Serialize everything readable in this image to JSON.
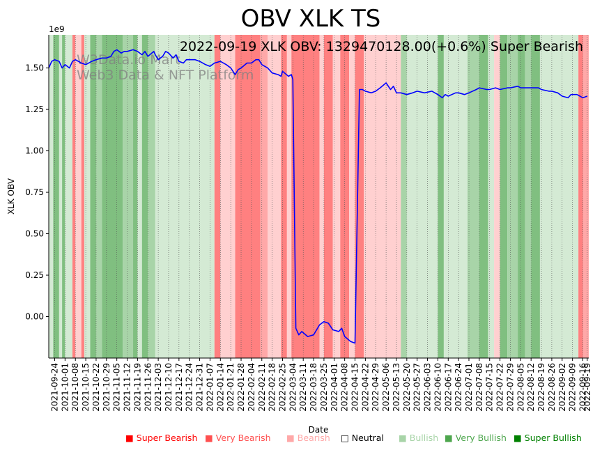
{
  "chart_data": {
    "type": "line",
    "title": "OBV XLK TS",
    "annotation": "2022-09-19 XLK OBV: 1329470128.00(+0.6%) Super Bearish",
    "watermark": [
      "W3Data.io Mart",
      "Web3 Data & NFT Platform"
    ],
    "xlabel": "Date",
    "ylabel": "XLK OBV",
    "y_offset_label": "1e9",
    "ylim": [
      -0.25,
      1.7
    ],
    "yticks": [
      0.0,
      0.25,
      0.5,
      0.75,
      1.0,
      1.25,
      1.5
    ],
    "ytick_labels": [
      "0.00",
      "0.25",
      "0.50",
      "0.75",
      "1.00",
      "1.25",
      "1.50"
    ],
    "x_range": [
      "2021-09-20",
      "2022-09-20"
    ],
    "xtick_labels": [
      "2021-09-24",
      "2021-10-01",
      "2021-10-08",
      "2021-10-15",
      "2021-10-22",
      "2021-10-29",
      "2021-11-05",
      "2021-11-12",
      "2021-11-19",
      "2021-11-26",
      "2021-12-03",
      "2021-12-10",
      "2021-12-17",
      "2021-12-24",
      "2021-12-31",
      "2022-01-07",
      "2022-01-14",
      "2022-01-21",
      "2022-01-28",
      "2022-02-04",
      "2022-02-11",
      "2022-02-18",
      "2022-02-25",
      "2022-03-04",
      "2022-03-11",
      "2022-03-18",
      "2022-03-25",
      "2022-04-01",
      "2022-04-08",
      "2022-04-15",
      "2022-04-22",
      "2022-04-29",
      "2022-05-06",
      "2022-05-13",
      "2022-05-20",
      "2022-05-27",
      "2022-06-03",
      "2022-06-10",
      "2022-06-17",
      "2022-06-24",
      "2022-07-01",
      "2022-07-08",
      "2022-07-15",
      "2022-07-22",
      "2022-07-29",
      "2022-08-05",
      "2022-08-12",
      "2022-08-19",
      "2022-08-26",
      "2022-09-02",
      "2022-09-09",
      "2022-09-16",
      "2022-09-19"
    ],
    "series": [
      {
        "name": "XLK OBV",
        "color": "#0000ff",
        "points": [
          [
            "2021-09-20",
            1.5
          ],
          [
            "2021-09-22",
            1.54
          ],
          [
            "2021-09-24",
            1.55
          ],
          [
            "2021-09-27",
            1.54
          ],
          [
            "2021-09-29",
            1.5
          ],
          [
            "2021-10-01",
            1.52
          ],
          [
            "2021-10-04",
            1.5
          ],
          [
            "2021-10-06",
            1.54
          ],
          [
            "2021-10-08",
            1.55
          ],
          [
            "2021-10-12",
            1.53
          ],
          [
            "2021-10-15",
            1.52
          ],
          [
            "2021-10-19",
            1.54
          ],
          [
            "2021-10-22",
            1.55
          ],
          [
            "2021-10-26",
            1.56
          ],
          [
            "2021-10-29",
            1.56
          ],
          [
            "2021-11-01",
            1.57
          ],
          [
            "2021-11-03",
            1.6
          ],
          [
            "2021-11-05",
            1.61
          ],
          [
            "2021-11-08",
            1.59
          ],
          [
            "2021-11-10",
            1.6
          ],
          [
            "2021-11-12",
            1.6
          ],
          [
            "2021-11-16",
            1.61
          ],
          [
            "2021-11-19",
            1.6
          ],
          [
            "2021-11-22",
            1.58
          ],
          [
            "2021-11-24",
            1.6
          ],
          [
            "2021-11-26",
            1.57
          ],
          [
            "2021-11-30",
            1.6
          ],
          [
            "2021-12-01",
            1.58
          ],
          [
            "2021-12-03",
            1.55
          ],
          [
            "2021-12-06",
            1.57
          ],
          [
            "2021-12-08",
            1.6
          ],
          [
            "2021-12-10",
            1.59
          ],
          [
            "2021-12-13",
            1.56
          ],
          [
            "2021-12-15",
            1.58
          ],
          [
            "2021-12-17",
            1.54
          ],
          [
            "2021-12-20",
            1.53
          ],
          [
            "2021-12-22",
            1.55
          ],
          [
            "2021-12-24",
            1.55
          ],
          [
            "2021-12-28",
            1.55
          ],
          [
            "2021-12-31",
            1.54
          ],
          [
            "2022-01-04",
            1.52
          ],
          [
            "2022-01-07",
            1.51
          ],
          [
            "2022-01-10",
            1.53
          ],
          [
            "2022-01-14",
            1.54
          ],
          [
            "2022-01-18",
            1.52
          ],
          [
            "2022-01-21",
            1.5
          ],
          [
            "2022-01-24",
            1.46
          ],
          [
            "2022-01-26",
            1.49
          ],
          [
            "2022-01-28",
            1.5
          ],
          [
            "2022-02-01",
            1.53
          ],
          [
            "2022-02-04",
            1.53
          ],
          [
            "2022-02-07",
            1.55
          ],
          [
            "2022-02-09",
            1.55
          ],
          [
            "2022-02-11",
            1.52
          ],
          [
            "2022-02-15",
            1.5
          ],
          [
            "2022-02-18",
            1.47
          ],
          [
            "2022-02-22",
            1.46
          ],
          [
            "2022-02-24",
            1.45
          ],
          [
            "2022-02-25",
            1.48
          ],
          [
            "2022-03-01",
            1.45
          ],
          [
            "2022-03-03",
            1.46
          ],
          [
            "2022-03-04",
            1.43
          ],
          [
            "2022-03-06",
            -0.07
          ],
          [
            "2022-03-08",
            -0.11
          ],
          [
            "2022-03-10",
            -0.09
          ],
          [
            "2022-03-14",
            -0.12
          ],
          [
            "2022-03-18",
            -0.11
          ],
          [
            "2022-03-22",
            -0.05
          ],
          [
            "2022-03-25",
            -0.03
          ],
          [
            "2022-03-28",
            -0.04
          ],
          [
            "2022-03-31",
            -0.08
          ],
          [
            "2022-04-04",
            -0.09
          ],
          [
            "2022-04-06",
            -0.07
          ],
          [
            "2022-04-08",
            -0.12
          ],
          [
            "2022-04-12",
            -0.15
          ],
          [
            "2022-04-15",
            -0.16
          ],
          [
            "2022-04-18",
            1.37
          ],
          [
            "2022-04-20",
            1.37
          ],
          [
            "2022-04-22",
            1.36
          ],
          [
            "2022-04-26",
            1.35
          ],
          [
            "2022-04-29",
            1.36
          ],
          [
            "2022-05-02",
            1.38
          ],
          [
            "2022-05-06",
            1.41
          ],
          [
            "2022-05-09",
            1.37
          ],
          [
            "2022-05-11",
            1.39
          ],
          [
            "2022-05-13",
            1.35
          ],
          [
            "2022-05-16",
            1.35
          ],
          [
            "2022-05-20",
            1.34
          ],
          [
            "2022-05-24",
            1.35
          ],
          [
            "2022-05-27",
            1.36
          ],
          [
            "2022-06-01",
            1.35
          ],
          [
            "2022-06-06",
            1.36
          ],
          [
            "2022-06-10",
            1.34
          ],
          [
            "2022-06-13",
            1.32
          ],
          [
            "2022-06-15",
            1.34
          ],
          [
            "2022-06-17",
            1.33
          ],
          [
            "2022-06-22",
            1.35
          ],
          [
            "2022-06-24",
            1.35
          ],
          [
            "2022-06-28",
            1.34
          ],
          [
            "2022-07-01",
            1.35
          ],
          [
            "2022-07-06",
            1.37
          ],
          [
            "2022-07-08",
            1.38
          ],
          [
            "2022-07-13",
            1.37
          ],
          [
            "2022-07-15",
            1.37
          ],
          [
            "2022-07-19",
            1.38
          ],
          [
            "2022-07-22",
            1.37
          ],
          [
            "2022-07-27",
            1.38
          ],
          [
            "2022-07-29",
            1.38
          ],
          [
            "2022-08-03",
            1.39
          ],
          [
            "2022-08-05",
            1.38
          ],
          [
            "2022-08-10",
            1.38
          ],
          [
            "2022-08-12",
            1.38
          ],
          [
            "2022-08-17",
            1.38
          ],
          [
            "2022-08-19",
            1.37
          ],
          [
            "2022-08-24",
            1.36
          ],
          [
            "2022-08-26",
            1.36
          ],
          [
            "2022-08-30",
            1.35
          ],
          [
            "2022-09-02",
            1.33
          ],
          [
            "2022-09-06",
            1.32
          ],
          [
            "2022-09-08",
            1.34
          ],
          [
            "2022-09-12",
            1.34
          ],
          [
            "2022-09-14",
            1.33
          ],
          [
            "2022-09-16",
            1.32
          ],
          [
            "2022-09-19",
            1.33
          ]
        ]
      }
    ],
    "bands": [
      [
        "2021-09-20",
        "2021-09-23",
        "light_green"
      ],
      [
        "2021-09-23",
        "2021-09-27",
        "green"
      ],
      [
        "2021-09-27",
        "2021-09-29",
        "light_green"
      ],
      [
        "2021-09-29",
        "2021-10-01",
        "green"
      ],
      [
        "2021-10-01",
        "2021-10-06",
        "light_green"
      ],
      [
        "2021-10-06",
        "2021-10-08",
        "red"
      ],
      [
        "2021-10-08",
        "2021-10-12",
        "light_red"
      ],
      [
        "2021-10-12",
        "2021-10-14",
        "red"
      ],
      [
        "2021-10-14",
        "2021-10-18",
        "light_green"
      ],
      [
        "2021-10-18",
        "2021-10-22",
        "green"
      ],
      [
        "2021-10-22",
        "2021-10-26",
        "medium_green"
      ],
      [
        "2021-10-26",
        "2021-11-09",
        "green"
      ],
      [
        "2021-11-09",
        "2021-11-16",
        "medium_green"
      ],
      [
        "2021-11-16",
        "2021-11-19",
        "green"
      ],
      [
        "2021-11-19",
        "2021-11-22",
        "light_green"
      ],
      [
        "2021-11-22",
        "2021-11-26",
        "green"
      ],
      [
        "2021-11-26",
        "2021-12-01",
        "medium_green"
      ],
      [
        "2021-12-01",
        "2022-01-10",
        "light_green"
      ],
      [
        "2022-01-10",
        "2022-01-14",
        "red"
      ],
      [
        "2022-01-14",
        "2022-01-24",
        "light_red"
      ],
      [
        "2022-01-24",
        "2022-02-10",
        "red"
      ],
      [
        "2022-02-10",
        "2022-02-15",
        "medium_red"
      ],
      [
        "2022-02-15",
        "2022-02-24",
        "light_red"
      ],
      [
        "2022-02-24",
        "2022-02-28",
        "red"
      ],
      [
        "2022-02-28",
        "2022-03-03",
        "light_red"
      ],
      [
        "2022-03-03",
        "2022-03-22",
        "red"
      ],
      [
        "2022-03-22",
        "2022-03-25",
        "light_red"
      ],
      [
        "2022-03-25",
        "2022-03-31",
        "red"
      ],
      [
        "2022-03-31",
        "2022-04-05",
        "light_red"
      ],
      [
        "2022-04-05",
        "2022-04-11",
        "red"
      ],
      [
        "2022-04-11",
        "2022-04-15",
        "light_red"
      ],
      [
        "2022-04-15",
        "2022-04-21",
        "red"
      ],
      [
        "2022-04-21",
        "2022-05-16",
        "light_red"
      ],
      [
        "2022-05-16",
        "2022-05-20",
        "medium_green"
      ],
      [
        "2022-05-20",
        "2022-06-10",
        "light_green"
      ],
      [
        "2022-06-10",
        "2022-06-14",
        "green"
      ],
      [
        "2022-06-14",
        "2022-06-30",
        "light_green"
      ],
      [
        "2022-06-30",
        "2022-07-08",
        "medium_green"
      ],
      [
        "2022-07-08",
        "2022-07-14",
        "green"
      ],
      [
        "2022-07-14",
        "2022-07-18",
        "light_green"
      ],
      [
        "2022-07-18",
        "2022-07-22",
        "light_red"
      ],
      [
        "2022-07-22",
        "2022-07-27",
        "green"
      ],
      [
        "2022-07-27",
        "2022-08-03",
        "medium_green"
      ],
      [
        "2022-08-03",
        "2022-08-08",
        "green"
      ],
      [
        "2022-08-08",
        "2022-08-12",
        "medium_green"
      ],
      [
        "2022-08-12",
        "2022-08-18",
        "green"
      ],
      [
        "2022-08-18",
        "2022-09-13",
        "light_green"
      ],
      [
        "2022-09-13",
        "2022-09-16",
        "red"
      ],
      [
        "2022-09-16",
        "2022-09-20",
        "medium_red"
      ]
    ],
    "band_colors": {
      "red": "#ff8080",
      "medium_red": "#ffa8a8",
      "light_red": "#ffd0d0",
      "green": "#80bf80",
      "medium_green": "#a8d4a8",
      "light_green": "#d4ead4"
    },
    "legend_position": "bottom",
    "legend": [
      {
        "label": "Super Bearish",
        "marker": "■",
        "color": "#ff0000"
      },
      {
        "label": "Very Bearish",
        "marker": "■",
        "color": "#ff4f4f"
      },
      {
        "label": "Bearish",
        "marker": "■",
        "color": "#ffa8a8"
      },
      {
        "label": "Neutral",
        "marker": "□",
        "color": "#000000"
      },
      {
        "label": "Bullish",
        "marker": "■",
        "color": "#a8d4a8"
      },
      {
        "label": "Very Bullish",
        "marker": "■",
        "color": "#4da64d"
      },
      {
        "label": "Super Bullish",
        "marker": "■",
        "color": "#008000"
      }
    ]
  }
}
